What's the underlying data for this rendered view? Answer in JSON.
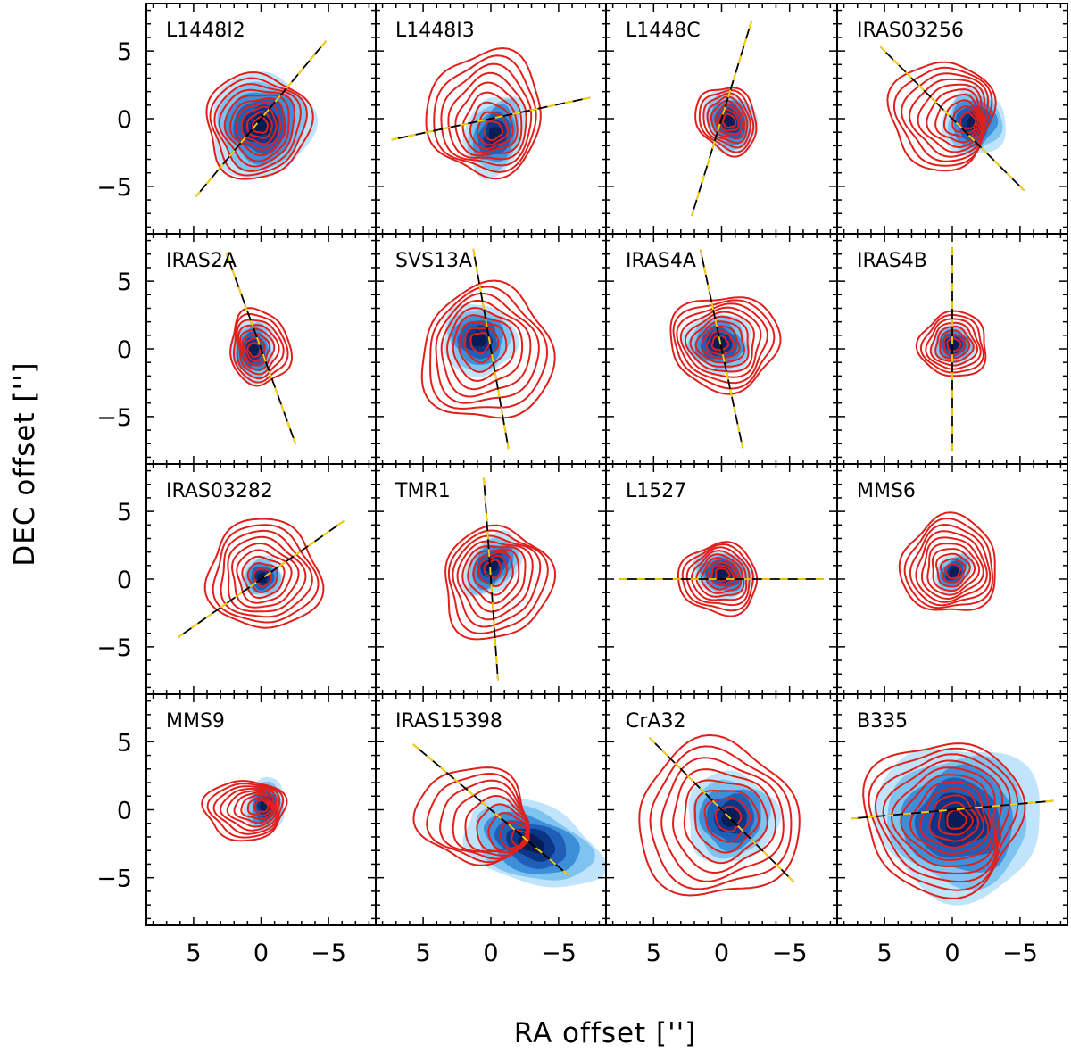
{
  "chart_data": {
    "type": "contour",
    "xlabel": "RA offset ['']",
    "ylabel": "DEC offset ['']",
    "xlim": [
      8.5,
      -8.5
    ],
    "ylim": [
      -8.5,
      8.5
    ],
    "x_ticks": [
      5,
      0,
      -5
    ],
    "y_ticks": [
      5,
      0,
      -5
    ],
    "x_tick_labels": [
      "5",
      "0",
      "−5"
    ],
    "y_tick_labels": [
      "5",
      "0",
      "−5"
    ],
    "grid_rows": 4,
    "grid_cols": 4,
    "colors": {
      "contour": "#e0201c",
      "fill_levels": [
        "#bfe4fb",
        "#7fc3f0",
        "#3d8fd9",
        "#1f5fb8",
        "#0d3585",
        "#081d55"
      ],
      "axis_line_dark": "#000000",
      "axis_line_light": "#ffd400"
    },
    "panels": [
      {
        "name": "L1448I2",
        "cx": 0.3,
        "cy": -0.5,
        "rx": 3.6,
        "ry": 3.7,
        "pa": 20,
        "levels": 10,
        "bx": 0.0,
        "by": -0.5,
        "brx": 3.6,
        "bry": 3.8,
        "outflow_pa": 40
      },
      {
        "name": "L1448I3",
        "cx": 0.4,
        "cy": 0.4,
        "rx": 4.0,
        "ry": 4.4,
        "pa": 10,
        "levels": 9,
        "bx": -0.3,
        "by": -1.2,
        "brx": 2.0,
        "bry": 3.0,
        "outflow_pa": 78
      },
      {
        "name": "L1448C",
        "cx": -0.4,
        "cy": -0.1,
        "rx": 2.4,
        "ry": 1.9,
        "pa": 60,
        "levels": 8,
        "bx": -0.6,
        "by": -0.2,
        "brx": 2.3,
        "bry": 1.7,
        "outflow_pa": 17
      },
      {
        "name": "IRAS03256",
        "cx": 0.8,
        "cy": 0.3,
        "rx": 3.6,
        "ry": 3.8,
        "pa": 0,
        "levels": 10,
        "bx": -1.6,
        "by": -0.3,
        "brx": 2.2,
        "bry": 2.4,
        "outflow_pa": -45
      },
      {
        "name": "IRAS2A",
        "cx": 0.1,
        "cy": 0.1,
        "rx": 2.6,
        "ry": 2.0,
        "pa": 80,
        "levels": 8,
        "bx": 0.6,
        "by": -0.1,
        "brx": 2.2,
        "bry": 1.5,
        "outflow_pa": -20
      },
      {
        "name": "SVS13A",
        "cx": 0.3,
        "cy": -0.4,
        "rx": 4.6,
        "ry": 4.8,
        "pa": 20,
        "levels": 9,
        "bx": 0.9,
        "by": 0.7,
        "brx": 2.6,
        "bry": 2.5,
        "outflow_pa": -10
      },
      {
        "name": "IRAS4A",
        "cx": -0.2,
        "cy": 0.5,
        "rx": 3.8,
        "ry": 3.3,
        "pa": 0,
        "levels": 10,
        "bx": 0.2,
        "by": 0.4,
        "brx": 2.4,
        "bry": 2.1,
        "outflow_pa": -12
      },
      {
        "name": "IRAS4B",
        "cx": -0.1,
        "cy": 0.3,
        "rx": 2.3,
        "ry": 2.2,
        "pa": 0,
        "levels": 8,
        "bx": -0.1,
        "by": 0.3,
        "brx": 1.5,
        "bry": 1.4,
        "outflow_pa": 0
      },
      {
        "name": "IRAS03282",
        "cx": -0.2,
        "cy": 0.3,
        "rx": 4.0,
        "ry": 3.8,
        "pa": 20,
        "levels": 9,
        "bx": -0.1,
        "by": 0.1,
        "brx": 1.4,
        "bry": 1.4,
        "outflow_pa": 55
      },
      {
        "name": "TMR1",
        "cx": -0.4,
        "cy": -0.3,
        "rx": 3.7,
        "ry": 4.0,
        "pa": 30,
        "levels": 9,
        "bx": -0.1,
        "by": 1.0,
        "brx": 1.6,
        "bry": 2.6,
        "outflow_pa": -4
      },
      {
        "name": "L1527",
        "cx": 0.2,
        "cy": 0.0,
        "rx": 2.7,
        "ry": 2.4,
        "pa": 10,
        "levels": 9,
        "bx": -0.1,
        "by": 0.4,
        "brx": 2.2,
        "bry": 1.6,
        "outflow_pa": 90
      },
      {
        "name": "MMS6",
        "cx": 0.2,
        "cy": 1.0,
        "rx": 3.3,
        "ry": 3.4,
        "pa": 30,
        "levels": 10,
        "bx": -0.1,
        "by": 0.5,
        "brx": 1.0,
        "bry": 1.6,
        "outflow_pa": null
      },
      {
        "name": "MMS9",
        "cx": 1.2,
        "cy": 0.0,
        "rx": 2.8,
        "ry": 2.0,
        "pa": 0,
        "levels": 9,
        "bx": -0.3,
        "by": 0.3,
        "brx": 1.3,
        "bry": 1.9,
        "outflow_pa": null
      },
      {
        "name": "IRAS15398",
        "cx": 1.3,
        "cy": -0.4,
        "rx": 3.9,
        "ry": 3.3,
        "pa": 10,
        "levels": 9,
        "bx": -3.0,
        "by": -2.5,
        "brx": 5.2,
        "bry": 2.8,
        "outflow_pa": -50
      },
      {
        "name": "CrA32",
        "cx": 0.3,
        "cy": -0.8,
        "rx": 5.7,
        "ry": 5.5,
        "pa": 10,
        "levels": 8,
        "bx": -0.7,
        "by": -0.6,
        "brx": 3.2,
        "bry": 3.2,
        "outflow_pa": -45
      },
      {
        "name": "B335",
        "cx": 0.7,
        "cy": -0.5,
        "rx": 5.6,
        "ry": 5.4,
        "pa": 0,
        "levels": 11,
        "bx": -0.5,
        "by": -0.8,
        "brx": 6.0,
        "bry": 5.5,
        "outflow_pa": 85
      }
    ]
  }
}
